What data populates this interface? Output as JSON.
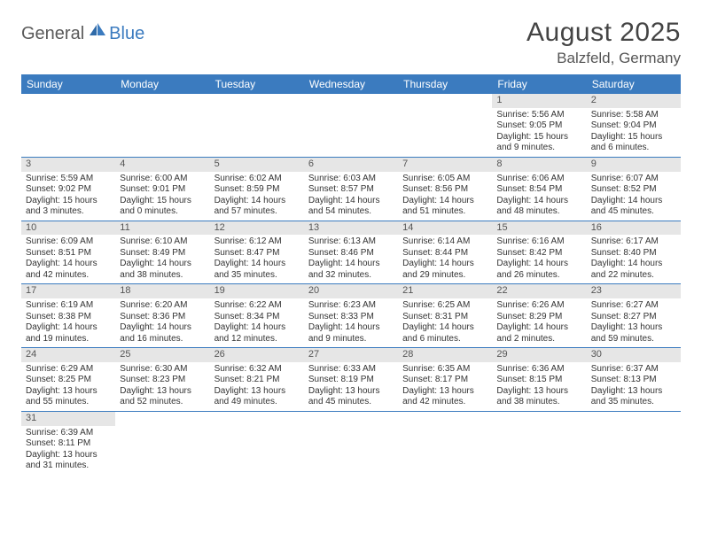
{
  "logo": {
    "text1": "General",
    "text2": "Blue"
  },
  "title": "August 2025",
  "location": "Balzfeld, Germany",
  "colors": {
    "header_bg": "#3b7bbf",
    "header_text": "#ffffff",
    "daynum_bg": "#e6e6e6",
    "daynum_text": "#555555",
    "body_text": "#333333",
    "divider": "#3b7bbf"
  },
  "dayNames": [
    "Sunday",
    "Monday",
    "Tuesday",
    "Wednesday",
    "Thursday",
    "Friday",
    "Saturday"
  ],
  "weeks": [
    [
      null,
      null,
      null,
      null,
      null,
      {
        "n": "1",
        "sr": "Sunrise: 5:56 AM",
        "ss": "Sunset: 9:05 PM",
        "dl1": "Daylight: 15 hours",
        "dl2": "and 9 minutes."
      },
      {
        "n": "2",
        "sr": "Sunrise: 5:58 AM",
        "ss": "Sunset: 9:04 PM",
        "dl1": "Daylight: 15 hours",
        "dl2": "and 6 minutes."
      }
    ],
    [
      {
        "n": "3",
        "sr": "Sunrise: 5:59 AM",
        "ss": "Sunset: 9:02 PM",
        "dl1": "Daylight: 15 hours",
        "dl2": "and 3 minutes."
      },
      {
        "n": "4",
        "sr": "Sunrise: 6:00 AM",
        "ss": "Sunset: 9:01 PM",
        "dl1": "Daylight: 15 hours",
        "dl2": "and 0 minutes."
      },
      {
        "n": "5",
        "sr": "Sunrise: 6:02 AM",
        "ss": "Sunset: 8:59 PM",
        "dl1": "Daylight: 14 hours",
        "dl2": "and 57 minutes."
      },
      {
        "n": "6",
        "sr": "Sunrise: 6:03 AM",
        "ss": "Sunset: 8:57 PM",
        "dl1": "Daylight: 14 hours",
        "dl2": "and 54 minutes."
      },
      {
        "n": "7",
        "sr": "Sunrise: 6:05 AM",
        "ss": "Sunset: 8:56 PM",
        "dl1": "Daylight: 14 hours",
        "dl2": "and 51 minutes."
      },
      {
        "n": "8",
        "sr": "Sunrise: 6:06 AM",
        "ss": "Sunset: 8:54 PM",
        "dl1": "Daylight: 14 hours",
        "dl2": "and 48 minutes."
      },
      {
        "n": "9",
        "sr": "Sunrise: 6:07 AM",
        "ss": "Sunset: 8:52 PM",
        "dl1": "Daylight: 14 hours",
        "dl2": "and 45 minutes."
      }
    ],
    [
      {
        "n": "10",
        "sr": "Sunrise: 6:09 AM",
        "ss": "Sunset: 8:51 PM",
        "dl1": "Daylight: 14 hours",
        "dl2": "and 42 minutes."
      },
      {
        "n": "11",
        "sr": "Sunrise: 6:10 AM",
        "ss": "Sunset: 8:49 PM",
        "dl1": "Daylight: 14 hours",
        "dl2": "and 38 minutes."
      },
      {
        "n": "12",
        "sr": "Sunrise: 6:12 AM",
        "ss": "Sunset: 8:47 PM",
        "dl1": "Daylight: 14 hours",
        "dl2": "and 35 minutes."
      },
      {
        "n": "13",
        "sr": "Sunrise: 6:13 AM",
        "ss": "Sunset: 8:46 PM",
        "dl1": "Daylight: 14 hours",
        "dl2": "and 32 minutes."
      },
      {
        "n": "14",
        "sr": "Sunrise: 6:14 AM",
        "ss": "Sunset: 8:44 PM",
        "dl1": "Daylight: 14 hours",
        "dl2": "and 29 minutes."
      },
      {
        "n": "15",
        "sr": "Sunrise: 6:16 AM",
        "ss": "Sunset: 8:42 PM",
        "dl1": "Daylight: 14 hours",
        "dl2": "and 26 minutes."
      },
      {
        "n": "16",
        "sr": "Sunrise: 6:17 AM",
        "ss": "Sunset: 8:40 PM",
        "dl1": "Daylight: 14 hours",
        "dl2": "and 22 minutes."
      }
    ],
    [
      {
        "n": "17",
        "sr": "Sunrise: 6:19 AM",
        "ss": "Sunset: 8:38 PM",
        "dl1": "Daylight: 14 hours",
        "dl2": "and 19 minutes."
      },
      {
        "n": "18",
        "sr": "Sunrise: 6:20 AM",
        "ss": "Sunset: 8:36 PM",
        "dl1": "Daylight: 14 hours",
        "dl2": "and 16 minutes."
      },
      {
        "n": "19",
        "sr": "Sunrise: 6:22 AM",
        "ss": "Sunset: 8:34 PM",
        "dl1": "Daylight: 14 hours",
        "dl2": "and 12 minutes."
      },
      {
        "n": "20",
        "sr": "Sunrise: 6:23 AM",
        "ss": "Sunset: 8:33 PM",
        "dl1": "Daylight: 14 hours",
        "dl2": "and 9 minutes."
      },
      {
        "n": "21",
        "sr": "Sunrise: 6:25 AM",
        "ss": "Sunset: 8:31 PM",
        "dl1": "Daylight: 14 hours",
        "dl2": "and 6 minutes."
      },
      {
        "n": "22",
        "sr": "Sunrise: 6:26 AM",
        "ss": "Sunset: 8:29 PM",
        "dl1": "Daylight: 14 hours",
        "dl2": "and 2 minutes."
      },
      {
        "n": "23",
        "sr": "Sunrise: 6:27 AM",
        "ss": "Sunset: 8:27 PM",
        "dl1": "Daylight: 13 hours",
        "dl2": "and 59 minutes."
      }
    ],
    [
      {
        "n": "24",
        "sr": "Sunrise: 6:29 AM",
        "ss": "Sunset: 8:25 PM",
        "dl1": "Daylight: 13 hours",
        "dl2": "and 55 minutes."
      },
      {
        "n": "25",
        "sr": "Sunrise: 6:30 AM",
        "ss": "Sunset: 8:23 PM",
        "dl1": "Daylight: 13 hours",
        "dl2": "and 52 minutes."
      },
      {
        "n": "26",
        "sr": "Sunrise: 6:32 AM",
        "ss": "Sunset: 8:21 PM",
        "dl1": "Daylight: 13 hours",
        "dl2": "and 49 minutes."
      },
      {
        "n": "27",
        "sr": "Sunrise: 6:33 AM",
        "ss": "Sunset: 8:19 PM",
        "dl1": "Daylight: 13 hours",
        "dl2": "and 45 minutes."
      },
      {
        "n": "28",
        "sr": "Sunrise: 6:35 AM",
        "ss": "Sunset: 8:17 PM",
        "dl1": "Daylight: 13 hours",
        "dl2": "and 42 minutes."
      },
      {
        "n": "29",
        "sr": "Sunrise: 6:36 AM",
        "ss": "Sunset: 8:15 PM",
        "dl1": "Daylight: 13 hours",
        "dl2": "and 38 minutes."
      },
      {
        "n": "30",
        "sr": "Sunrise: 6:37 AM",
        "ss": "Sunset: 8:13 PM",
        "dl1": "Daylight: 13 hours",
        "dl2": "and 35 minutes."
      }
    ],
    [
      {
        "n": "31",
        "sr": "Sunrise: 6:39 AM",
        "ss": "Sunset: 8:11 PM",
        "dl1": "Daylight: 13 hours",
        "dl2": "and 31 minutes."
      },
      null,
      null,
      null,
      null,
      null,
      null
    ]
  ]
}
